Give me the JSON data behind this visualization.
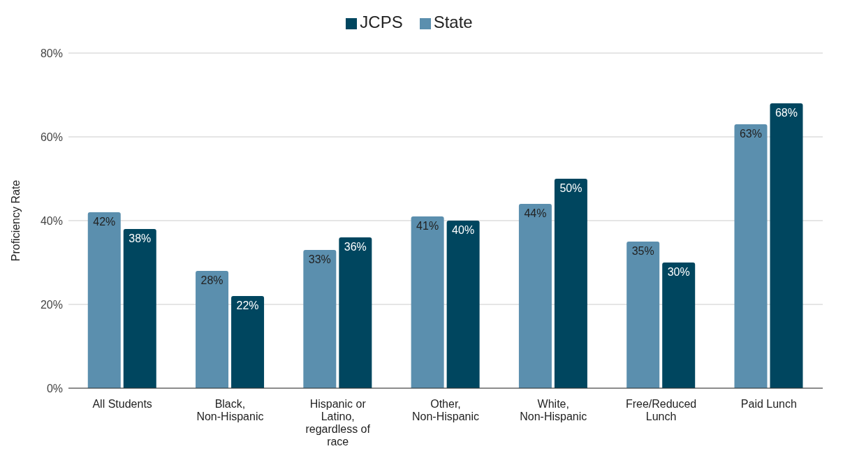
{
  "chart_data": {
    "type": "bar",
    "ylabel": "Proficiency Rate",
    "categories": [
      "All Students",
      "Black, Non-Hispanic",
      "Hispanic or Latino, regardless of race",
      "Other, Non-Hispanic",
      "White, Non-Hispanic",
      "Free/Reduced Lunch",
      "Paid Lunch"
    ],
    "series": [
      {
        "name": "State",
        "color": "#5b8fae",
        "values": [
          42,
          28,
          33,
          41,
          44,
          35,
          63
        ],
        "value_labels": [
          "42%",
          "28%",
          "33%",
          "41%",
          "44%",
          "35%",
          "63%"
        ]
      },
      {
        "name": "JCPS",
        "color": "#00465f",
        "values": [
          38,
          22,
          36,
          40,
          50,
          30,
          68
        ],
        "value_labels": [
          "38%",
          "22%",
          "36%",
          "40%",
          "50%",
          "30%",
          "68%"
        ]
      }
    ],
    "ylim": [
      0,
      80
    ],
    "yticks": [
      {
        "value": 0,
        "label": "0%"
      },
      {
        "value": 20,
        "label": "20%"
      },
      {
        "value": 40,
        "label": "40%"
      },
      {
        "value": 60,
        "label": "60%"
      },
      {
        "value": 80,
        "label": "80%"
      }
    ],
    "grid": "y",
    "legend": "top"
  }
}
